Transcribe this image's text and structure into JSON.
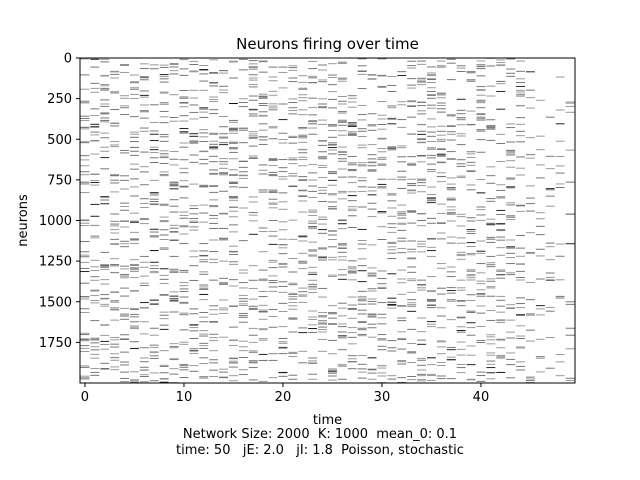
{
  "chart_data": {
    "type": "raster",
    "title": "Neurons firing over time",
    "xlabel": "time",
    "ylabel": "neurons",
    "xlim": [
      -0.5,
      49.5
    ],
    "ylim": [
      2000,
      0
    ],
    "y_inverted": true,
    "x_ticks": [
      "0",
      "10",
      "20",
      "30",
      "40"
    ],
    "x_tick_values": [
      0,
      10,
      20,
      30,
      40
    ],
    "y_ticks": [
      "0",
      "250",
      "500",
      "750",
      "1000",
      "1250",
      "1500",
      "1750"
    ],
    "y_tick_values": [
      0,
      250,
      500,
      750,
      1000,
      1250,
      1500,
      1750
    ],
    "grid": false,
    "network_size": 2000,
    "time_steps": 50,
    "active_time_range": [
      0,
      44
    ],
    "spike_color": "#555555",
    "background_color": "#ffffff",
    "sample_spikes": [
      {
        "t": 7,
        "n": 830
      },
      {
        "t": 15,
        "n": 855
      },
      {
        "t": 19,
        "n": 825
      },
      {
        "t": 26,
        "n": 1020
      },
      {
        "t": 40,
        "n": 830
      },
      {
        "t": 42,
        "n": 1020
      },
      {
        "t": 12,
        "n": 1455
      },
      {
        "t": 7,
        "n": 1185
      },
      {
        "t": 29,
        "n": 1845
      },
      {
        "t": 35,
        "n": 1845
      },
      {
        "t": 42,
        "n": 1935
      },
      {
        "t": 28,
        "n": 1625
      },
      {
        "t": 26,
        "n": 1710
      },
      {
        "t": 23,
        "n": 1665
      },
      {
        "t": 44,
        "n": 1580
      },
      {
        "t": 20,
        "n": 1935
      },
      {
        "t": 15,
        "n": 280
      },
      {
        "t": 22,
        "n": 1100
      }
    ]
  },
  "caption": {
    "line1": "Network Size: 2000  K: 1000  mean_0: 0.1",
    "line2": "time: 50   jE: 2.0   jI: 1.8  Poisson, stochastic"
  }
}
